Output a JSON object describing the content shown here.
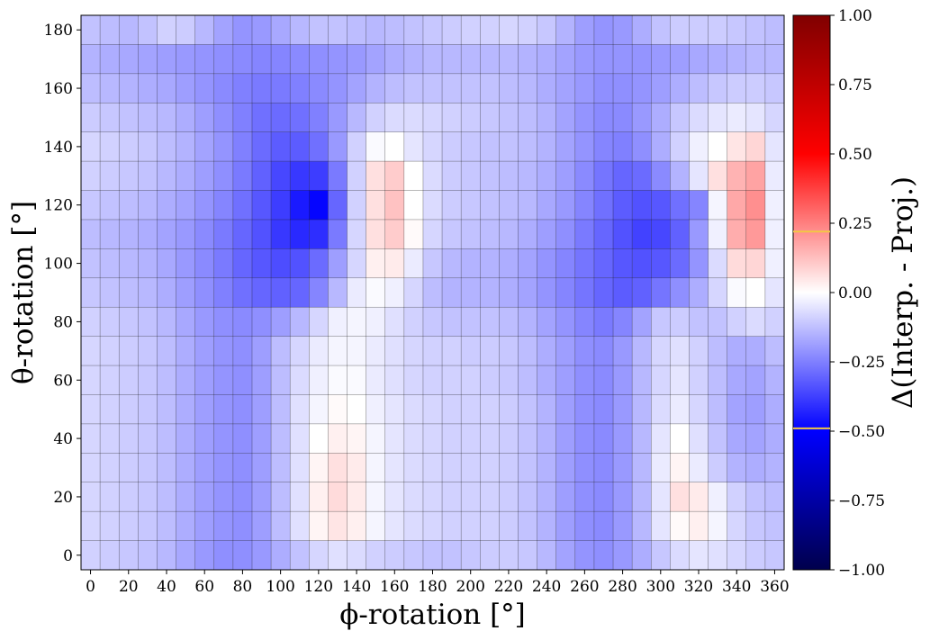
{
  "chart_data": {
    "type": "heatmap",
    "xlabel": "ϕ-rotation [°]",
    "ylabel": "θ-rotation [°]",
    "colorbar_label": "Δ(Interp. - Proj.)",
    "colormap": "seismic",
    "vmin": -1.0,
    "vmax": 1.0,
    "x_ticks": [
      0,
      20,
      40,
      60,
      80,
      100,
      120,
      140,
      160,
      180,
      200,
      220,
      240,
      260,
      280,
      300,
      320,
      340,
      360
    ],
    "y_ticks": [
      0,
      20,
      40,
      60,
      80,
      100,
      120,
      140,
      160,
      180
    ],
    "colorbar_ticks": [
      "−1.00",
      "−0.75",
      "−0.50",
      "−0.25",
      "0.00",
      "0.25",
      "0.50",
      "0.75",
      "1.00"
    ],
    "x": [
      0,
      10,
      20,
      30,
      40,
      50,
      60,
      70,
      80,
      90,
      100,
      110,
      120,
      130,
      140,
      150,
      160,
      170,
      180,
      190,
      200,
      210,
      220,
      230,
      240,
      250,
      260,
      270,
      280,
      290,
      300,
      310,
      320,
      330,
      340,
      350,
      360
    ],
    "y": [
      0,
      10,
      20,
      30,
      40,
      50,
      60,
      70,
      80,
      90,
      100,
      110,
      120,
      130,
      140,
      150,
      160,
      170,
      180
    ],
    "z": [
      [
        -0.09,
        -0.1,
        -0.11,
        -0.12,
        -0.14,
        -0.17,
        -0.2,
        -0.22,
        -0.22,
        -0.2,
        -0.16,
        -0.12,
        -0.08,
        -0.06,
        -0.07,
        -0.09,
        -0.1,
        -0.11,
        -0.12,
        -0.12,
        -0.11,
        -0.1,
        -0.1,
        -0.11,
        -0.14,
        -0.18,
        -0.21,
        -0.22,
        -0.2,
        -0.16,
        -0.11,
        -0.07,
        -0.05,
        -0.06,
        -0.08,
        -0.1,
        -0.11
      ],
      [
        -0.08,
        -0.09,
        -0.1,
        -0.11,
        -0.13,
        -0.16,
        -0.19,
        -0.21,
        -0.22,
        -0.19,
        -0.13,
        -0.06,
        0.02,
        0.05,
        0.03,
        -0.02,
        -0.05,
        -0.07,
        -0.08,
        -0.09,
        -0.09,
        -0.09,
        -0.1,
        -0.12,
        -0.15,
        -0.19,
        -0.22,
        -0.23,
        -0.2,
        -0.14,
        -0.05,
        0.01,
        0.03,
        -0.02,
        -0.08,
        -0.11,
        -0.12
      ],
      [
        -0.08,
        -0.09,
        -0.1,
        -0.11,
        -0.13,
        -0.16,
        -0.19,
        -0.21,
        -0.22,
        -0.19,
        -0.13,
        -0.06,
        0.03,
        0.07,
        0.04,
        -0.02,
        -0.05,
        -0.07,
        -0.08,
        -0.09,
        -0.09,
        -0.09,
        -0.1,
        -0.12,
        -0.15,
        -0.19,
        -0.22,
        -0.23,
        -0.2,
        -0.14,
        -0.05,
        0.06,
        0.04,
        -0.03,
        -0.09,
        -0.12,
        -0.13
      ],
      [
        -0.08,
        -0.09,
        -0.1,
        -0.11,
        -0.13,
        -0.16,
        -0.19,
        -0.21,
        -0.22,
        -0.19,
        -0.13,
        -0.06,
        0.02,
        0.06,
        0.04,
        -0.02,
        -0.05,
        -0.07,
        -0.08,
        -0.09,
        -0.09,
        -0.09,
        -0.1,
        -0.12,
        -0.15,
        -0.19,
        -0.22,
        -0.23,
        -0.2,
        -0.14,
        -0.04,
        0.02,
        -0.04,
        -0.1,
        -0.15,
        -0.16,
        -0.15
      ],
      [
        -0.08,
        -0.09,
        -0.1,
        -0.11,
        -0.13,
        -0.16,
        -0.19,
        -0.21,
        -0.22,
        -0.19,
        -0.13,
        -0.06,
        0.0,
        0.03,
        0.02,
        -0.02,
        -0.05,
        -0.07,
        -0.08,
        -0.09,
        -0.09,
        -0.09,
        -0.1,
        -0.12,
        -0.15,
        -0.19,
        -0.22,
        -0.23,
        -0.2,
        -0.14,
        -0.05,
        0.0,
        -0.06,
        -0.12,
        -0.17,
        -0.18,
        -0.16
      ],
      [
        -0.08,
        -0.09,
        -0.1,
        -0.11,
        -0.13,
        -0.16,
        -0.19,
        -0.21,
        -0.22,
        -0.19,
        -0.13,
        -0.06,
        -0.02,
        0.01,
        0.0,
        -0.03,
        -0.05,
        -0.07,
        -0.08,
        -0.09,
        -0.09,
        -0.09,
        -0.1,
        -0.12,
        -0.15,
        -0.19,
        -0.22,
        -0.23,
        -0.2,
        -0.14,
        -0.07,
        -0.04,
        -0.08,
        -0.13,
        -0.18,
        -0.19,
        -0.16
      ],
      [
        -0.08,
        -0.09,
        -0.1,
        -0.11,
        -0.13,
        -0.16,
        -0.19,
        -0.21,
        -0.22,
        -0.19,
        -0.13,
        -0.07,
        -0.03,
        -0.01,
        -0.01,
        -0.04,
        -0.06,
        -0.08,
        -0.09,
        -0.09,
        -0.09,
        -0.1,
        -0.11,
        -0.13,
        -0.16,
        -0.19,
        -0.22,
        -0.23,
        -0.2,
        -0.14,
        -0.08,
        -0.05,
        -0.09,
        -0.13,
        -0.17,
        -0.18,
        -0.15
      ],
      [
        -0.08,
        -0.09,
        -0.1,
        -0.11,
        -0.13,
        -0.16,
        -0.19,
        -0.21,
        -0.22,
        -0.19,
        -0.13,
        -0.08,
        -0.04,
        -0.02,
        -0.02,
        -0.04,
        -0.06,
        -0.08,
        -0.09,
        -0.09,
        -0.1,
        -0.1,
        -0.11,
        -0.13,
        -0.16,
        -0.19,
        -0.22,
        -0.23,
        -0.2,
        -0.14,
        -0.08,
        -0.06,
        -0.09,
        -0.13,
        -0.16,
        -0.16,
        -0.13
      ],
      [
        -0.09,
        -0.1,
        -0.11,
        -0.12,
        -0.14,
        -0.17,
        -0.2,
        -0.22,
        -0.23,
        -0.22,
        -0.19,
        -0.14,
        -0.08,
        -0.03,
        -0.02,
        -0.03,
        -0.06,
        -0.09,
        -0.11,
        -0.12,
        -0.12,
        -0.12,
        -0.13,
        -0.15,
        -0.18,
        -0.21,
        -0.24,
        -0.26,
        -0.24,
        -0.18,
        -0.11,
        -0.1,
        -0.12,
        -0.12,
        -0.09,
        -0.07,
        -0.09
      ],
      [
        -0.11,
        -0.12,
        -0.13,
        -0.14,
        -0.16,
        -0.19,
        -0.22,
        -0.25,
        -0.28,
        -0.3,
        -0.31,
        -0.3,
        -0.24,
        -0.14,
        -0.04,
        -0.01,
        -0.03,
        -0.08,
        -0.13,
        -0.15,
        -0.15,
        -0.15,
        -0.16,
        -0.18,
        -0.21,
        -0.24,
        -0.27,
        -0.3,
        -0.32,
        -0.31,
        -0.27,
        -0.22,
        -0.16,
        -0.08,
        -0.01,
        0.0,
        -0.05
      ],
      [
        -0.12,
        -0.13,
        -0.14,
        -0.15,
        -0.17,
        -0.2,
        -0.23,
        -0.26,
        -0.3,
        -0.33,
        -0.35,
        -0.34,
        -0.29,
        -0.19,
        -0.08,
        0.03,
        0.04,
        -0.04,
        -0.11,
        -0.14,
        -0.15,
        -0.15,
        -0.16,
        -0.18,
        -0.21,
        -0.24,
        -0.27,
        -0.3,
        -0.33,
        -0.34,
        -0.33,
        -0.29,
        -0.21,
        -0.07,
        0.07,
        0.08,
        -0.03
      ],
      [
        -0.13,
        -0.14,
        -0.15,
        -0.16,
        -0.18,
        -0.2,
        -0.23,
        -0.26,
        -0.3,
        -0.34,
        -0.39,
        -0.42,
        -0.41,
        -0.26,
        -0.08,
        0.06,
        0.1,
        0.01,
        -0.08,
        -0.11,
        -0.12,
        -0.13,
        -0.14,
        -0.16,
        -0.19,
        -0.22,
        -0.26,
        -0.3,
        -0.34,
        -0.37,
        -0.36,
        -0.31,
        -0.2,
        -0.03,
        0.16,
        0.2,
        -0.03
      ],
      [
        -0.11,
        -0.12,
        -0.13,
        -0.14,
        -0.16,
        -0.18,
        -0.21,
        -0.24,
        -0.28,
        -0.33,
        -0.38,
        -0.45,
        -0.49,
        -0.3,
        -0.09,
        0.06,
        0.12,
        0.0,
        -0.07,
        -0.1,
        -0.11,
        -0.12,
        -0.13,
        -0.14,
        -0.17,
        -0.2,
        -0.24,
        -0.28,
        -0.32,
        -0.34,
        -0.33,
        -0.28,
        -0.24,
        -0.02,
        0.17,
        0.22,
        -0.03
      ],
      [
        -0.09,
        -0.1,
        -0.11,
        -0.12,
        -0.14,
        -0.16,
        -0.19,
        -0.22,
        -0.26,
        -0.31,
        -0.36,
        -0.39,
        -0.38,
        -0.26,
        -0.09,
        0.06,
        0.1,
        0.0,
        -0.07,
        -0.1,
        -0.11,
        -0.12,
        -0.13,
        -0.14,
        -0.16,
        -0.19,
        -0.23,
        -0.27,
        -0.3,
        -0.29,
        -0.23,
        -0.15,
        -0.05,
        0.06,
        0.15,
        0.18,
        -0.04
      ],
      [
        -0.08,
        -0.09,
        -0.1,
        -0.11,
        -0.13,
        -0.15,
        -0.18,
        -0.21,
        -0.25,
        -0.29,
        -0.32,
        -0.32,
        -0.28,
        -0.2,
        -0.09,
        -0.01,
        0.0,
        -0.05,
        -0.08,
        -0.1,
        -0.11,
        -0.12,
        -0.12,
        -0.13,
        -0.15,
        -0.18,
        -0.21,
        -0.24,
        -0.25,
        -0.22,
        -0.16,
        -0.09,
        -0.03,
        0.0,
        0.05,
        0.08,
        -0.05
      ],
      [
        -0.1,
        -0.11,
        -0.12,
        -0.13,
        -0.14,
        -0.16,
        -0.19,
        -0.22,
        -0.25,
        -0.28,
        -0.29,
        -0.28,
        -0.25,
        -0.2,
        -0.14,
        -0.09,
        -0.07,
        -0.07,
        -0.08,
        -0.09,
        -0.1,
        -0.11,
        -0.12,
        -0.13,
        -0.15,
        -0.18,
        -0.21,
        -0.23,
        -0.23,
        -0.2,
        -0.16,
        -0.11,
        -0.07,
        -0.05,
        -0.04,
        -0.05,
        -0.08
      ],
      [
        -0.13,
        -0.14,
        -0.15,
        -0.16,
        -0.17,
        -0.19,
        -0.21,
        -0.23,
        -0.25,
        -0.26,
        -0.26,
        -0.25,
        -0.23,
        -0.21,
        -0.18,
        -0.15,
        -0.13,
        -0.12,
        -0.12,
        -0.12,
        -0.12,
        -0.12,
        -0.13,
        -0.14,
        -0.16,
        -0.18,
        -0.2,
        -0.22,
        -0.22,
        -0.21,
        -0.19,
        -0.16,
        -0.13,
        -0.11,
        -0.1,
        -0.1,
        -0.11
      ],
      [
        -0.15,
        -0.16,
        -0.17,
        -0.18,
        -0.19,
        -0.2,
        -0.21,
        -0.22,
        -0.23,
        -0.24,
        -0.24,
        -0.23,
        -0.22,
        -0.21,
        -0.2,
        -0.18,
        -0.16,
        -0.15,
        -0.14,
        -0.14,
        -0.14,
        -0.14,
        -0.14,
        -0.15,
        -0.16,
        -0.18,
        -0.2,
        -0.21,
        -0.21,
        -0.21,
        -0.2,
        -0.19,
        -0.17,
        -0.16,
        -0.15,
        -0.14,
        -0.14
      ],
      [
        -0.12,
        -0.13,
        -0.14,
        -0.12,
        -0.09,
        -0.1,
        -0.14,
        -0.18,
        -0.21,
        -0.2,
        -0.17,
        -0.14,
        -0.12,
        -0.12,
        -0.13,
        -0.14,
        -0.13,
        -0.12,
        -0.11,
        -0.1,
        -0.09,
        -0.09,
        -0.08,
        -0.09,
        -0.11,
        -0.15,
        -0.19,
        -0.21,
        -0.2,
        -0.16,
        -0.12,
        -0.1,
        -0.1,
        -0.1,
        -0.11,
        -0.12,
        -0.13
      ]
    ]
  }
}
